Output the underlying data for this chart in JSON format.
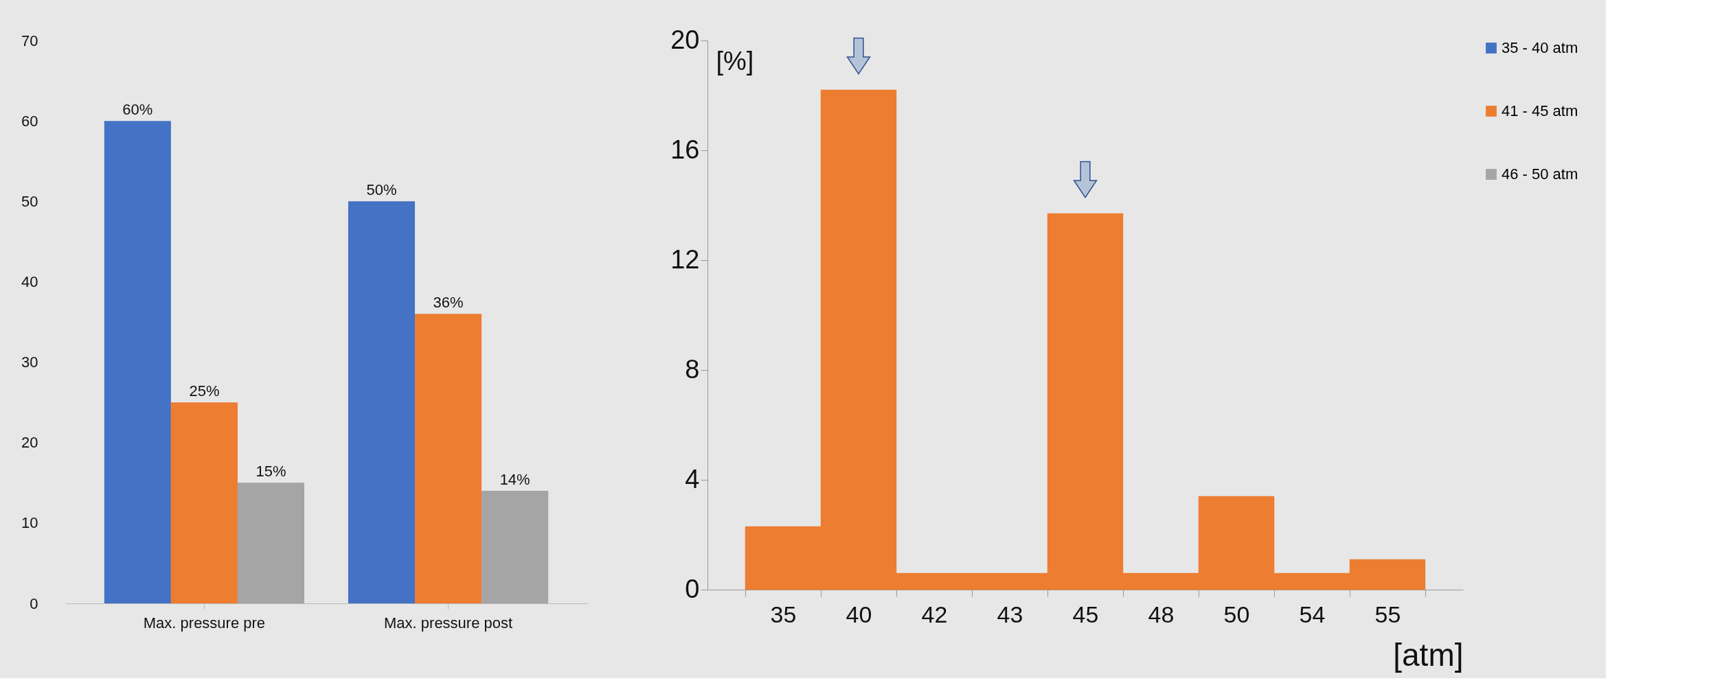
{
  "chart_data": [
    {
      "type": "bar",
      "categories": [
        "Max. pressure pre",
        "Max. pressure post"
      ],
      "series": [
        {
          "name": "35 - 40 atm",
          "color": "#4472c4",
          "values": [
            60,
            50
          ],
          "value_labels": [
            "60%",
            "50%"
          ]
        },
        {
          "name": "41 - 45 atm",
          "color": "#ed7d31",
          "values": [
            25,
            36
          ],
          "value_labels": [
            "25%",
            "36%"
          ]
        },
        {
          "name": "46 - 50 atm",
          "color": "#a5a5a5",
          "values": [
            15,
            14
          ],
          "value_labels": [
            "15%",
            "14%"
          ]
        }
      ],
      "ylim": [
        0,
        70
      ],
      "yticks": [
        0,
        10,
        20,
        30,
        40,
        50,
        60,
        70
      ],
      "grid": false,
      "legend": "right"
    },
    {
      "type": "bar",
      "categories": [
        "35",
        "40",
        "42",
        "43",
        "45",
        "48",
        "50",
        "54",
        "55"
      ],
      "values": [
        2.3,
        18.2,
        0.6,
        0.6,
        13.7,
        0.6,
        3.4,
        0.6,
        1.1
      ],
      "color": "#ed7d31",
      "ylim": [
        0,
        20
      ],
      "yticks": [
        0,
        4,
        8,
        12,
        16,
        20
      ],
      "ylabel": "[%]",
      "xlabel": "[atm]",
      "grid": false
    }
  ]
}
